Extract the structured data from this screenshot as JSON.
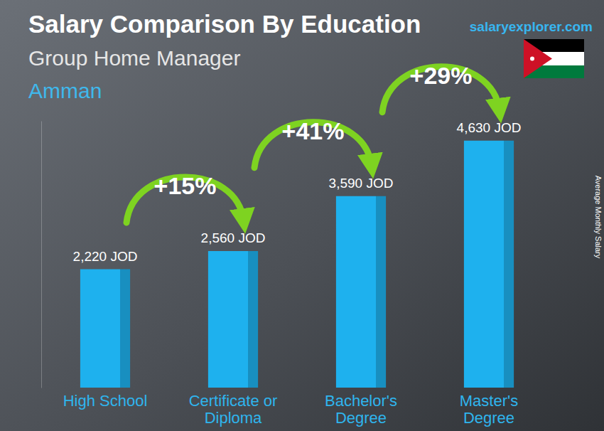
{
  "chart_data": {
    "type": "bar",
    "title": "Salary Comparison By Education",
    "subtitle": "Group Home Manager",
    "location": "Amman",
    "source": "salaryexplorer.com",
    "y_label": "Average Monthly Salary",
    "categories": [
      "High School",
      "Certificate or\nDiploma",
      "Bachelor's\nDegree",
      "Master's\nDegree"
    ],
    "values": [
      2220,
      2560,
      3590,
      4630
    ],
    "value_labels": [
      "2,220 JOD",
      "2,560 JOD",
      "3,590 JOD",
      "4,630 JOD"
    ],
    "annotations": [
      "+15%",
      "+41%",
      "+29%"
    ],
    "color": "#1eb1ee",
    "ylim": [
      0,
      5000
    ],
    "yticks": [],
    "grid": false,
    "data_labels": true,
    "tick_labels": "x"
  }
}
